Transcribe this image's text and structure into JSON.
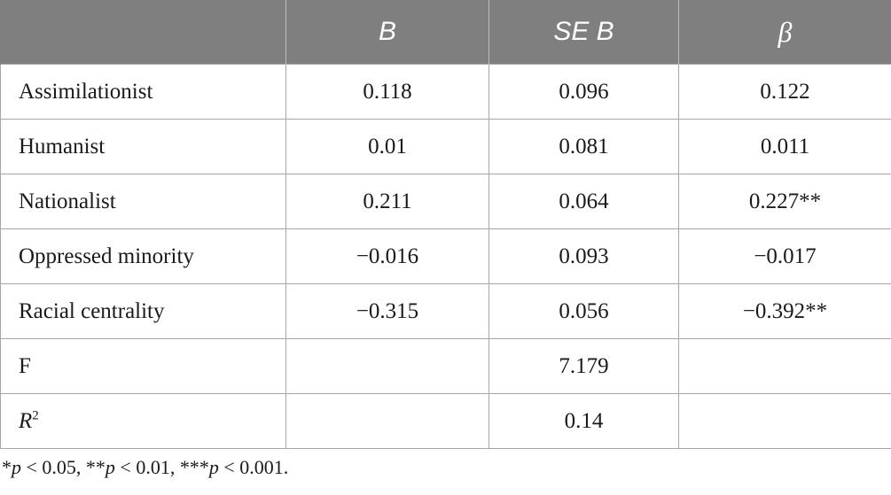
{
  "table": {
    "headers": [
      "",
      "B",
      "SE B",
      "β"
    ],
    "rows": [
      {
        "label": "Assimilationist",
        "b": "0.118",
        "se_b": "0.096",
        "beta": "0.122"
      },
      {
        "label": "Humanist",
        "b": "0.01",
        "se_b": "0.081",
        "beta": "0.011"
      },
      {
        "label": "Nationalist",
        "b": "0.211",
        "se_b": "0.064",
        "beta": "0.227**"
      },
      {
        "label": "Oppressed minority",
        "b": "−0.016",
        "se_b": "0.093",
        "beta": "−0.017"
      },
      {
        "label": "Racial centrality",
        "b": "−0.315",
        "se_b": "0.056",
        "beta": "−0.392**"
      },
      {
        "label": "F",
        "b": "",
        "se_b": "7.179",
        "beta": ""
      },
      {
        "label_base": "R",
        "label_sup": "2",
        "b": "",
        "se_b": "0.14",
        "beta": ""
      }
    ],
    "header_bg": "#7f7f7f"
  },
  "footnote": {
    "p1_stars": "*",
    "p1_sym": "p",
    "p1_rest": " < 0.05, ",
    "p2_stars": "**",
    "p2_sym": "p",
    "p2_rest": " < 0.01, ",
    "p3_stars": "***",
    "p3_sym": "p",
    "p3_rest": " < 0.001."
  }
}
